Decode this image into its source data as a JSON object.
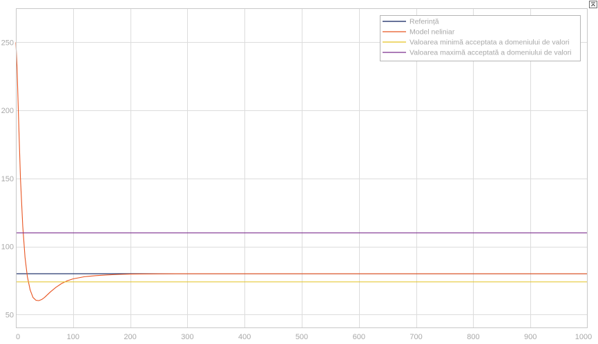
{
  "chart_data": {
    "type": "line",
    "title": "",
    "xlabel": "",
    "ylabel": "",
    "xlim": [
      0,
      1000
    ],
    "ylim": [
      40,
      275
    ],
    "xticks": [
      0,
      100,
      200,
      300,
      400,
      500,
      600,
      700,
      800,
      900,
      1000
    ],
    "yticks": [
      50,
      100,
      150,
      200,
      250
    ],
    "grid": true,
    "legend_position": "top-right",
    "series": [
      {
        "name": "Referință",
        "color": "#0b1f5c",
        "x": [
          0,
          1000
        ],
        "y": [
          80,
          80
        ]
      },
      {
        "name": "Model neliniar",
        "color": "#e8531f",
        "x": [
          0,
          2,
          5,
          8,
          12,
          16,
          20,
          25,
          30,
          35,
          40,
          45,
          50,
          60,
          70,
          80,
          90,
          100,
          120,
          140,
          160,
          180,
          200,
          250,
          300,
          350,
          400,
          500,
          600,
          700,
          800,
          900,
          1000
        ],
        "y": [
          250,
          232,
          190,
          150,
          115,
          92,
          78,
          68,
          62.5,
          60.5,
          60.2,
          61,
          62.5,
          66.5,
          70,
          72.8,
          74.8,
          76.2,
          77.8,
          78.6,
          79.1,
          79.5,
          79.7,
          79.9,
          80,
          80,
          80,
          80,
          80,
          80,
          80,
          80,
          80
        ]
      },
      {
        "name": "Valoarea minimă acceptata a domeniului de valori",
        "color": "#e3c21e",
        "x": [
          0,
          1000
        ],
        "y": [
          74,
          74
        ]
      },
      {
        "name": "Valoarea maximă acceptată a domeniului de valori",
        "color": "#7b2d8e",
        "x": [
          0,
          1000
        ],
        "y": [
          110,
          110
        ]
      }
    ]
  },
  "ui": {
    "corner_button_icon": "expand-arrow-icon"
  }
}
